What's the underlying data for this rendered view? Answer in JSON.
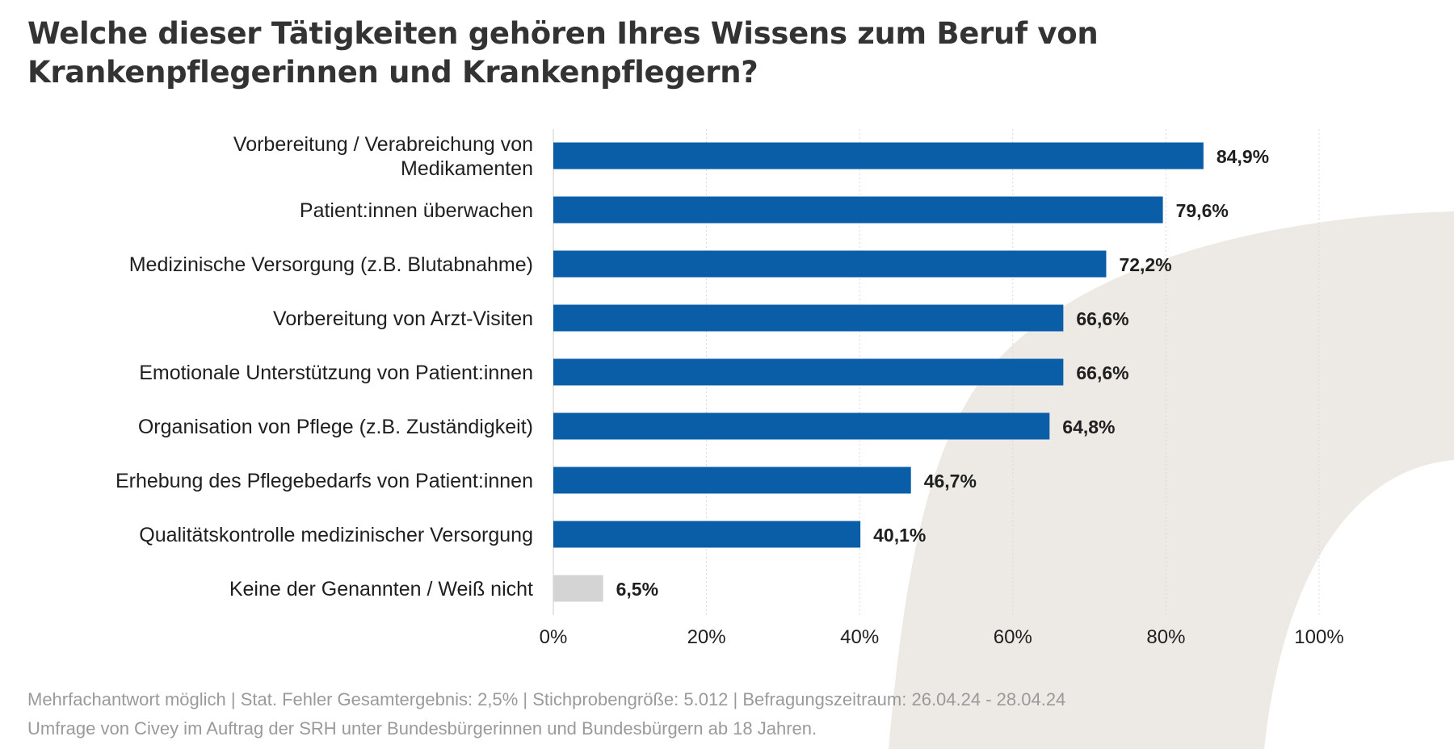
{
  "title": "Welche dieser Tätigkeiten gehören Ihres Wissens zum Beruf von Krankenpflegerinnen und Krankenpflegern?",
  "footer": {
    "line1": "Mehrfachantwort möglich | Stat. Fehler Gesamtergebnis: 2,5% | Stichprobengröße: 5.012 | Befragungszeitraum: 26.04.24 - 28.04.24",
    "line2": "Umfrage von Civey im Auftrag der SRH unter Bundesbürgerinnen und Bundesbürgern ab 18 Jahren."
  },
  "colors": {
    "bar": "#0a5ea8",
    "bar_muted": "#d4d4d4",
    "text": "#1f1f1f",
    "title": "#333333",
    "footer": "#9a9a9a",
    "background_shape": "#ede9e5",
    "grid": "#d9d9d9"
  },
  "chart_data": {
    "type": "bar",
    "orientation": "horizontal",
    "categories": [
      "Vorbereitung / Verabreichung von Medikamenten",
      "Patient:innen überwachen",
      "Medizinische Versorgung (z.B. Blutabnahme)",
      "Vorbereitung von Arzt-Visiten",
      "Emotionale Unterstützung von Patient:innen",
      "Organisation von Pflege (z.B. Zuständigkeit)",
      "Erhebung des Pflegebedarfs von Patient:innen",
      "Qualitätskontrolle medizinischer Versorgung",
      "Keine der Genannten / Weiß nicht"
    ],
    "values": [
      84.9,
      79.6,
      72.2,
      66.6,
      66.6,
      64.8,
      46.7,
      40.1,
      6.5
    ],
    "value_labels": [
      "84,9%",
      "79,6%",
      "72,2%",
      "66,6%",
      "66,6%",
      "64,8%",
      "46,7%",
      "40,1%",
      "6,5%"
    ],
    "muted": [
      false,
      false,
      false,
      false,
      false,
      false,
      false,
      false,
      true
    ],
    "xlim": [
      0,
      100
    ],
    "xticks": [
      0,
      20,
      40,
      60,
      80,
      100
    ],
    "xtick_labels": [
      "0%",
      "20%",
      "40%",
      "60%",
      "80%",
      "100%"
    ],
    "grid": true
  }
}
